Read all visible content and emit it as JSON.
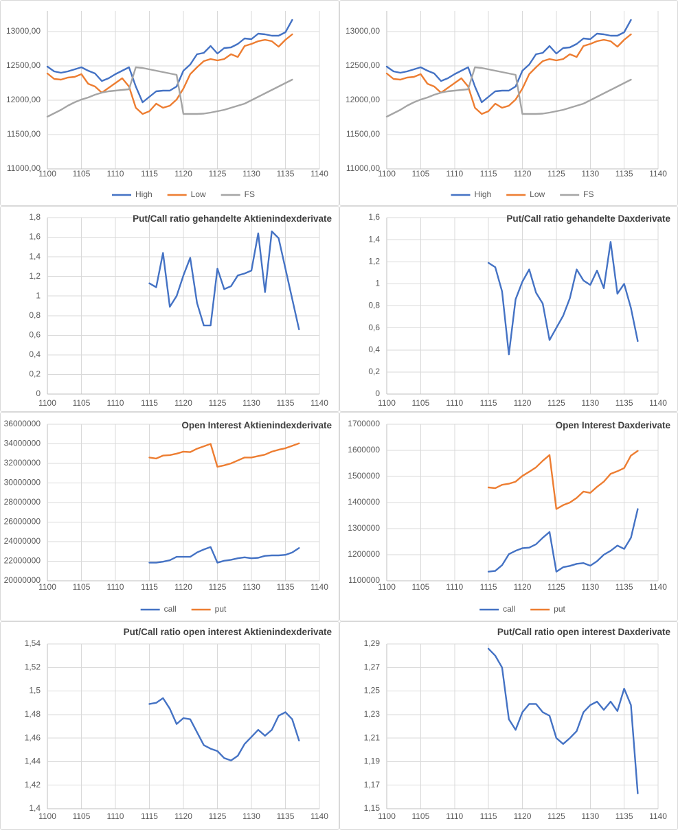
{
  "colors": {
    "series_blue": "#4472C4",
    "series_orange": "#ED7D31",
    "series_gray": "#A5A5A5",
    "gridline": "#D9D9D9",
    "axis_line": "#BFBFBF",
    "tick_label": "#595959",
    "title_text": "#404040",
    "panel_border": "#D9D9D9"
  },
  "x_axis": {
    "min": 1100,
    "max": 1140,
    "tick_values": [
      1100,
      1105,
      1110,
      1115,
      1120,
      1125,
      1130,
      1135,
      1140
    ],
    "tick_labels": [
      "1100",
      "1105",
      "1110",
      "1115",
      "1120",
      "1125",
      "1130",
      "1135",
      "1140"
    ]
  },
  "chart_data": [
    {
      "name": "high-low-fs-chart-left",
      "type": "line",
      "title": "",
      "legend": true,
      "legend_position": "bottom",
      "grid": true,
      "ylim": [
        11000,
        13300
      ],
      "y_tick_values": [
        11000,
        11500,
        12000,
        12500,
        13000
      ],
      "y_tick_labels": [
        "11000,00",
        "11500,00",
        "12000,00",
        "12500,00",
        "13000,00"
      ],
      "x": [
        1100,
        1101,
        1102,
        1103,
        1104,
        1105,
        1106,
        1107,
        1108,
        1109,
        1110,
        1111,
        1112,
        1113,
        1114,
        1115,
        1116,
        1117,
        1118,
        1119,
        1120,
        1121,
        1122,
        1123,
        1124,
        1125,
        1126,
        1127,
        1128,
        1129,
        1130,
        1131,
        1132,
        1133,
        1134,
        1135,
        1136
      ],
      "series": [
        {
          "name": "High",
          "color": "#4472C4",
          "values": [
            12490,
            12420,
            12400,
            12420,
            12450,
            12480,
            12430,
            12390,
            12280,
            12320,
            12380,
            12430,
            12480,
            12200,
            11970,
            12050,
            12130,
            12140,
            12140,
            12200,
            12430,
            12520,
            12670,
            12690,
            12790,
            12680,
            12760,
            12770,
            12820,
            12900,
            12890,
            12970,
            12960,
            12940,
            12940,
            12990,
            13170
          ]
        },
        {
          "name": "Low",
          "color": "#ED7D31",
          "values": [
            12390,
            12310,
            12300,
            12330,
            12340,
            12380,
            12240,
            12200,
            12110,
            12180,
            12250,
            12320,
            12200,
            11890,
            11800,
            11840,
            11950,
            11890,
            11920,
            12010,
            12170,
            12380,
            12480,
            12570,
            12600,
            12580,
            12600,
            12670,
            12630,
            12790,
            12820,
            12860,
            12880,
            12860,
            12780,
            12880,
            12960
          ]
        },
        {
          "name": "FS",
          "color": "#A5A5A5",
          "values": [
            11760,
            11810,
            11860,
            11920,
            11970,
            12010,
            12040,
            12080,
            12110,
            12130,
            12140,
            12150,
            12160,
            12480,
            12470,
            12450,
            12430,
            12410,
            12390,
            12370,
            11800,
            11800,
            11800,
            11805,
            11820,
            11840,
            11860,
            11890,
            11920,
            11950,
            12000,
            12050,
            12100,
            12150,
            12200,
            12250,
            12300
          ]
        }
      ]
    },
    {
      "name": "high-low-fs-chart-right",
      "type": "line",
      "title": "",
      "legend": true,
      "legend_position": "bottom",
      "grid": true,
      "ylim": [
        11000,
        13300
      ],
      "y_tick_values": [
        11000,
        11500,
        12000,
        12500,
        13000
      ],
      "y_tick_labels": [
        "11000,00",
        "11500,00",
        "12000,00",
        "12500,00",
        "13000,00"
      ],
      "x": [
        1100,
        1101,
        1102,
        1103,
        1104,
        1105,
        1106,
        1107,
        1108,
        1109,
        1110,
        1111,
        1112,
        1113,
        1114,
        1115,
        1116,
        1117,
        1118,
        1119,
        1120,
        1121,
        1122,
        1123,
        1124,
        1125,
        1126,
        1127,
        1128,
        1129,
        1130,
        1131,
        1132,
        1133,
        1134,
        1135,
        1136
      ],
      "series": [
        {
          "name": "High",
          "color": "#4472C4",
          "values": [
            12490,
            12420,
            12400,
            12420,
            12450,
            12480,
            12430,
            12390,
            12280,
            12320,
            12380,
            12430,
            12480,
            12200,
            11970,
            12050,
            12130,
            12140,
            12140,
            12200,
            12430,
            12520,
            12670,
            12690,
            12790,
            12680,
            12760,
            12770,
            12820,
            12900,
            12890,
            12970,
            12960,
            12940,
            12940,
            12990,
            13170
          ]
        },
        {
          "name": "Low",
          "color": "#ED7D31",
          "values": [
            12390,
            12310,
            12300,
            12330,
            12340,
            12380,
            12240,
            12200,
            12110,
            12180,
            12250,
            12320,
            12200,
            11890,
            11800,
            11840,
            11950,
            11890,
            11920,
            12010,
            12170,
            12380,
            12480,
            12570,
            12600,
            12580,
            12600,
            12670,
            12630,
            12790,
            12820,
            12860,
            12880,
            12860,
            12780,
            12880,
            12960
          ]
        },
        {
          "name": "FS",
          "color": "#A5A5A5",
          "values": [
            11760,
            11810,
            11860,
            11920,
            11970,
            12010,
            12040,
            12080,
            12110,
            12130,
            12140,
            12150,
            12160,
            12480,
            12470,
            12450,
            12430,
            12410,
            12390,
            12370,
            11800,
            11800,
            11800,
            11805,
            11820,
            11840,
            11860,
            11890,
            11920,
            11950,
            12000,
            12050,
            12100,
            12150,
            12200,
            12250,
            12300
          ]
        }
      ]
    },
    {
      "name": "put-call-ratio-traded-aktienindexderivate-chart",
      "type": "line",
      "title": "Put/Call ratio gehandelte Aktienindexderivate",
      "legend": false,
      "grid": true,
      "ylim": [
        0,
        1.8
      ],
      "y_tick_values": [
        0,
        0.2,
        0.4,
        0.6,
        0.8,
        1,
        1.2,
        1.4,
        1.6,
        1.8
      ],
      "y_tick_labels": [
        "0",
        "0,2",
        "0,4",
        "0,6",
        "0,8",
        "1",
        "1,2",
        "1,4",
        "1,6",
        "1,8"
      ],
      "x": [
        1115,
        1116,
        1117,
        1118,
        1119,
        1120,
        1121,
        1122,
        1123,
        1124,
        1125,
        1126,
        1127,
        1128,
        1129,
        1130,
        1131,
        1132,
        1133,
        1134,
        1135,
        1136,
        1137
      ],
      "series": [
        {
          "name": "Put/Call ratio",
          "color": "#4472C4",
          "values": [
            1.13,
            1.09,
            1.44,
            0.89,
            1.0,
            1.21,
            1.39,
            0.93,
            0.7,
            0.7,
            1.28,
            1.07,
            1.1,
            1.21,
            1.23,
            1.26,
            1.64,
            1.04,
            1.66,
            1.59,
            1.28,
            0.97,
            0.66
          ]
        }
      ]
    },
    {
      "name": "put-call-ratio-traded-daxderivate-chart",
      "type": "line",
      "title": "Put/Call ratio gehandelte Daxderivate",
      "legend": false,
      "grid": true,
      "ylim": [
        0,
        1.6
      ],
      "y_tick_values": [
        0,
        0.2,
        0.4,
        0.6,
        0.8,
        1,
        1.2,
        1.4,
        1.6
      ],
      "y_tick_labels": [
        "0",
        "0,2",
        "0,4",
        "0,6",
        "0,8",
        "1",
        "1,2",
        "1,4",
        "1,6"
      ],
      "x": [
        1115,
        1116,
        1117,
        1118,
        1119,
        1120,
        1121,
        1122,
        1123,
        1124,
        1125,
        1126,
        1127,
        1128,
        1129,
        1130,
        1131,
        1132,
        1133,
        1134,
        1135,
        1136,
        1137
      ],
      "series": [
        {
          "name": "Put/Call ratio",
          "color": "#4472C4",
          "values": [
            1.19,
            1.15,
            0.93,
            0.36,
            0.86,
            1.02,
            1.13,
            0.92,
            0.82,
            0.49,
            0.6,
            0.71,
            0.87,
            1.13,
            1.03,
            0.99,
            1.12,
            0.96,
            1.38,
            0.91,
            1.0,
            0.78,
            0.48
          ]
        }
      ]
    },
    {
      "name": "open-interest-aktienindexderivate-chart",
      "type": "line",
      "title": "Open Interest Aktienindexderivate",
      "legend": true,
      "legend_position": "bottom",
      "grid": true,
      "ylim": [
        20000000,
        36000000
      ],
      "y_tick_values": [
        20000000,
        22000000,
        24000000,
        26000000,
        28000000,
        30000000,
        32000000,
        34000000,
        36000000
      ],
      "y_tick_labels": [
        "20000000",
        "22000000",
        "24000000",
        "26000000",
        "28000000",
        "30000000",
        "32000000",
        "34000000",
        "36000000"
      ],
      "x": [
        1115,
        1116,
        1117,
        1118,
        1119,
        1120,
        1121,
        1122,
        1123,
        1124,
        1125,
        1126,
        1127,
        1128,
        1129,
        1130,
        1131,
        1132,
        1133,
        1134,
        1135,
        1136,
        1137
      ],
      "series": [
        {
          "name": "call",
          "color": "#4472C4",
          "values": [
            21850000,
            21850000,
            21950000,
            22100000,
            22450000,
            22450000,
            22450000,
            22900000,
            23200000,
            23450000,
            21850000,
            22050000,
            22150000,
            22300000,
            22400000,
            22300000,
            22350000,
            22550000,
            22600000,
            22600000,
            22650000,
            22900000,
            23350000
          ]
        },
        {
          "name": "put",
          "color": "#ED7D31",
          "values": [
            32600000,
            32500000,
            32800000,
            32850000,
            33000000,
            33200000,
            33150000,
            33500000,
            33750000,
            34000000,
            31650000,
            31800000,
            32000000,
            32300000,
            32600000,
            32600000,
            32750000,
            32900000,
            33200000,
            33400000,
            33550000,
            33800000,
            34050000
          ]
        }
      ]
    },
    {
      "name": "open-interest-daxderivate-chart",
      "type": "line",
      "title": "Open Interest Daxderivate",
      "legend": true,
      "legend_position": "bottom",
      "grid": true,
      "ylim": [
        1100000,
        1700000
      ],
      "y_tick_values": [
        1100000,
        1200000,
        1300000,
        1400000,
        1500000,
        1600000,
        1700000
      ],
      "y_tick_labels": [
        "1100000",
        "1200000",
        "1300000",
        "1400000",
        "1500000",
        "1600000",
        "1700000"
      ],
      "x": [
        1115,
        1116,
        1117,
        1118,
        1119,
        1120,
        1121,
        1122,
        1123,
        1124,
        1125,
        1126,
        1127,
        1128,
        1129,
        1130,
        1131,
        1132,
        1133,
        1134,
        1135,
        1136,
        1137
      ],
      "series": [
        {
          "name": "call",
          "color": "#4472C4",
          "values": [
            1135000,
            1138000,
            1160000,
            1202000,
            1215000,
            1225000,
            1227000,
            1240000,
            1265000,
            1287000,
            1135000,
            1152000,
            1157000,
            1165000,
            1168000,
            1158000,
            1175000,
            1200000,
            1215000,
            1235000,
            1222000,
            1265000,
            1375000
          ]
        },
        {
          "name": "put",
          "color": "#ED7D31",
          "values": [
            1458000,
            1455000,
            1468000,
            1472000,
            1480000,
            1502000,
            1518000,
            1535000,
            1560000,
            1582000,
            1375000,
            1390000,
            1400000,
            1418000,
            1442000,
            1437000,
            1460000,
            1480000,
            1510000,
            1520000,
            1532000,
            1580000,
            1598000
          ]
        }
      ]
    },
    {
      "name": "put-call-ratio-open-interest-aktienindexderivate-chart",
      "type": "line",
      "title": "Put/Call ratio open interest Aktienindexderivate",
      "legend": false,
      "grid": true,
      "ylim": [
        1.4,
        1.54
      ],
      "y_tick_values": [
        1.4,
        1.42,
        1.44,
        1.46,
        1.48,
        1.5,
        1.52,
        1.54
      ],
      "y_tick_labels": [
        "1,4",
        "1,42",
        "1,44",
        "1,46",
        "1,48",
        "1,5",
        "1,52",
        "1,54"
      ],
      "x": [
        1115,
        1116,
        1117,
        1118,
        1119,
        1120,
        1121,
        1122,
        1123,
        1124,
        1125,
        1126,
        1127,
        1128,
        1129,
        1130,
        1131,
        1132,
        1133,
        1134,
        1135,
        1136,
        1137
      ],
      "series": [
        {
          "name": "Put/Call ratio",
          "color": "#4472C4",
          "values": [
            1.489,
            1.49,
            1.494,
            1.485,
            1.472,
            1.477,
            1.476,
            1.465,
            1.454,
            1.451,
            1.449,
            1.443,
            1.441,
            1.445,
            1.455,
            1.461,
            1.467,
            1.462,
            1.467,
            1.479,
            1.482,
            1.476,
            1.458
          ]
        }
      ]
    },
    {
      "name": "put-call-ratio-open-interest-daxderivate-chart",
      "type": "line",
      "title": "Put/Call ratio open interest Daxderivate",
      "legend": false,
      "grid": true,
      "ylim": [
        1.15,
        1.29
      ],
      "y_tick_values": [
        1.15,
        1.17,
        1.19,
        1.21,
        1.23,
        1.25,
        1.27,
        1.29
      ],
      "y_tick_labels": [
        "1,15",
        "1,17",
        "1,19",
        "1,21",
        "1,23",
        "1,25",
        "1,27",
        "1,29"
      ],
      "x": [
        1115,
        1116,
        1117,
        1118,
        1119,
        1120,
        1121,
        1122,
        1123,
        1124,
        1125,
        1126,
        1127,
        1128,
        1129,
        1130,
        1131,
        1132,
        1133,
        1134,
        1135,
        1136,
        1137
      ],
      "series": [
        {
          "name": "Put/Call ratio",
          "color": "#4472C4",
          "values": [
            1.286,
            1.28,
            1.27,
            1.226,
            1.217,
            1.232,
            1.239,
            1.239,
            1.232,
            1.229,
            1.21,
            1.205,
            1.21,
            1.216,
            1.232,
            1.238,
            1.241,
            1.234,
            1.241,
            1.233,
            1.252,
            1.238,
            1.163
          ]
        }
      ]
    }
  ]
}
